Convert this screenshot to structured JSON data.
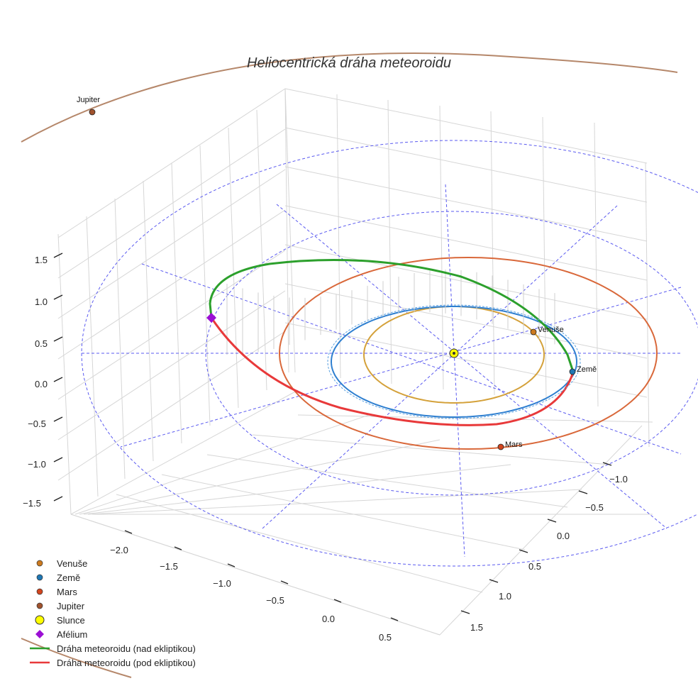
{
  "chart_data": {
    "type": "scatter",
    "title": "Heliocentrická dráha meteoroidu",
    "x_ticks": [
      "−2.0",
      "−1.5",
      "−1.0",
      "−0.5",
      "0.0",
      "0.5"
    ],
    "y_ticks": [
      "−1.0",
      "−0.5",
      "0.0",
      "0.5",
      "1.0",
      "1.5"
    ],
    "z_ticks": [
      "−1.5",
      "−1.0",
      "−0.5",
      "0.0",
      "0.5",
      "1.0",
      "1.5"
    ],
    "planets": [
      {
        "name": "Venuše",
        "color": "#cc7a1f",
        "orbit_color": "#d4a13a",
        "orbit_radius_au": 0.72
      },
      {
        "name": "Země",
        "color": "#1f77b4",
        "orbit_color": "#2e7fd0",
        "orbit_radius_au": 1.0
      },
      {
        "name": "Mars",
        "color": "#d2451e",
        "orbit_color": "#d9683a",
        "orbit_radius_au": 1.52
      },
      {
        "name": "Jupiter",
        "color": "#a0522d",
        "orbit_color": "#b5876a",
        "orbit_radius_au": 5.2
      }
    ],
    "sun": {
      "name": "Slunce",
      "color": "#ffff00"
    },
    "aphelion": {
      "name": "Afélium",
      "color": "#9b0fd4"
    },
    "meteoroid_orbit": {
      "series": [
        {
          "name": "Dráha meteoroidu (nad ekliptikou)",
          "color": "#2ca02c"
        },
        {
          "name": "Dráha meteoroidu (pod ekliptikou)",
          "color": "#e8393a"
        }
      ]
    },
    "grid": true
  },
  "legend": {
    "items": [
      {
        "label": "Venuše",
        "kind": "dot",
        "color": "#cc7a1f"
      },
      {
        "label": "Země",
        "kind": "dot",
        "color": "#1f77b4"
      },
      {
        "label": "Mars",
        "kind": "dot",
        "color": "#d2451e"
      },
      {
        "label": "Jupiter",
        "kind": "dot",
        "color": "#a0522d"
      },
      {
        "label": "Slunce",
        "kind": "sun",
        "color": "#ffff00"
      },
      {
        "label": "Afélium",
        "kind": "diamond",
        "color": "#9b0fd4"
      },
      {
        "label": "Dráha meteoroidu (nad ekliptikou)",
        "kind": "line",
        "color": "#2ca02c"
      },
      {
        "label": "Dráha meteoroidu (pod ekliptikou)",
        "kind": "line",
        "color": "#e8393a"
      }
    ]
  }
}
